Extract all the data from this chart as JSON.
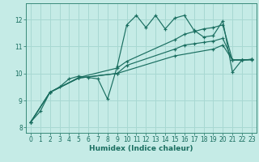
{
  "xlabel": "Humidex (Indice chaleur)",
  "background_color": "#c5ebe6",
  "grid_color": "#a8d8d2",
  "line_color": "#1a6e60",
  "spine_color": "#3a8a7a",
  "xlim": [
    -0.5,
    23.5
  ],
  "ylim": [
    7.8,
    12.6
  ],
  "yticks": [
    8,
    9,
    10,
    11,
    12
  ],
  "xticks": [
    0,
    1,
    2,
    3,
    4,
    5,
    6,
    7,
    8,
    9,
    10,
    11,
    12,
    13,
    14,
    15,
    16,
    17,
    18,
    19,
    20,
    21,
    22,
    23
  ],
  "lines": [
    {
      "x": [
        0,
        1,
        2,
        3,
        4,
        5,
        6,
        7,
        8,
        9,
        10,
        11,
        12,
        13,
        14,
        15,
        16,
        17,
        18,
        19,
        20,
        21,
        22,
        23
      ],
      "y": [
        8.2,
        8.6,
        9.3,
        9.5,
        9.8,
        9.9,
        9.85,
        9.8,
        9.05,
        10.25,
        11.8,
        12.15,
        11.7,
        12.15,
        11.65,
        12.05,
        12.15,
        11.6,
        11.35,
        11.4,
        11.95,
        10.05,
        10.5,
        10.5
      ]
    },
    {
      "x": [
        0,
        2,
        5,
        9,
        10,
        15,
        16,
        17,
        18,
        19,
        20,
        21,
        22,
        23
      ],
      "y": [
        8.2,
        9.3,
        9.85,
        10.2,
        10.45,
        11.25,
        11.45,
        11.55,
        11.65,
        11.7,
        11.8,
        10.5,
        10.5,
        10.52
      ]
    },
    {
      "x": [
        0,
        2,
        5,
        9,
        10,
        15,
        16,
        17,
        18,
        19,
        20,
        21,
        22,
        23
      ],
      "y": [
        8.2,
        9.3,
        9.83,
        10.0,
        10.3,
        10.9,
        11.05,
        11.1,
        11.15,
        11.2,
        11.3,
        10.5,
        10.5,
        10.52
      ]
    },
    {
      "x": [
        0,
        2,
        5,
        9,
        15,
        19,
        20,
        21,
        22,
        23
      ],
      "y": [
        8.2,
        9.3,
        9.83,
        10.0,
        10.65,
        10.9,
        11.05,
        10.5,
        10.5,
        10.52
      ]
    }
  ]
}
